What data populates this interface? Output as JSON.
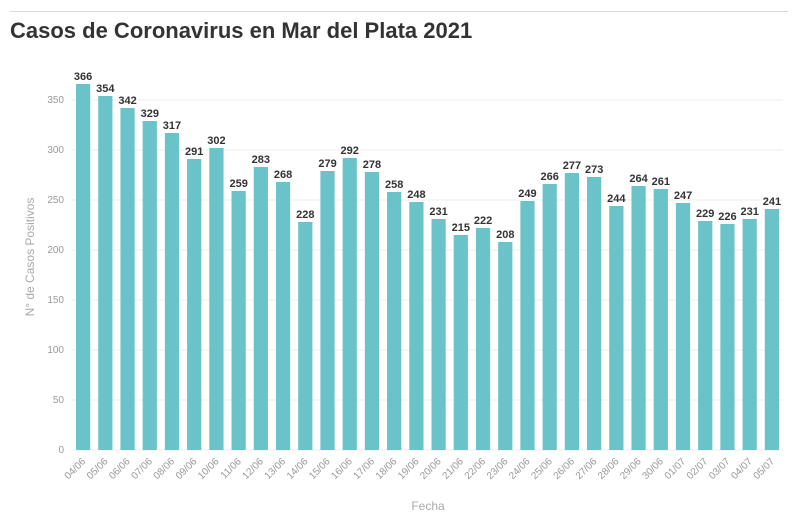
{
  "title": "Casos de Coronavirus en Mar del Plata 2021",
  "colors": {
    "bar": "#69c3c9",
    "grid": "#ececec",
    "text": "#333333",
    "tick": "#999999"
  },
  "chart_data": {
    "type": "bar",
    "title": "Casos de Coronavirus en Mar del Plata 2021",
    "xlabel": "Fecha",
    "ylabel": "N° de Casos Positivos",
    "ylim": [
      0,
      370
    ],
    "yticks": [
      0,
      50,
      100,
      150,
      200,
      250,
      300,
      350
    ],
    "grid": true,
    "categories": [
      "04/06",
      "05/06",
      "06/06",
      "07/06",
      "08/06",
      "09/06",
      "10/06",
      "11/06",
      "12/06",
      "13/06",
      "14/06",
      "15/06",
      "16/06",
      "17/06",
      "18/06",
      "19/06",
      "20/06",
      "21/06",
      "22/06",
      "23/06",
      "24/06",
      "25/06",
      "26/06",
      "27/06",
      "28/06",
      "29/06",
      "30/06",
      "01/07",
      "02/07",
      "03/07",
      "04/07",
      "05/07"
    ],
    "values": [
      366,
      354,
      342,
      329,
      317,
      291,
      302,
      259,
      283,
      268,
      228,
      279,
      292,
      278,
      258,
      248,
      231,
      215,
      222,
      208,
      249,
      266,
      277,
      273,
      244,
      264,
      261,
      247,
      229,
      226,
      231,
      241
    ]
  }
}
